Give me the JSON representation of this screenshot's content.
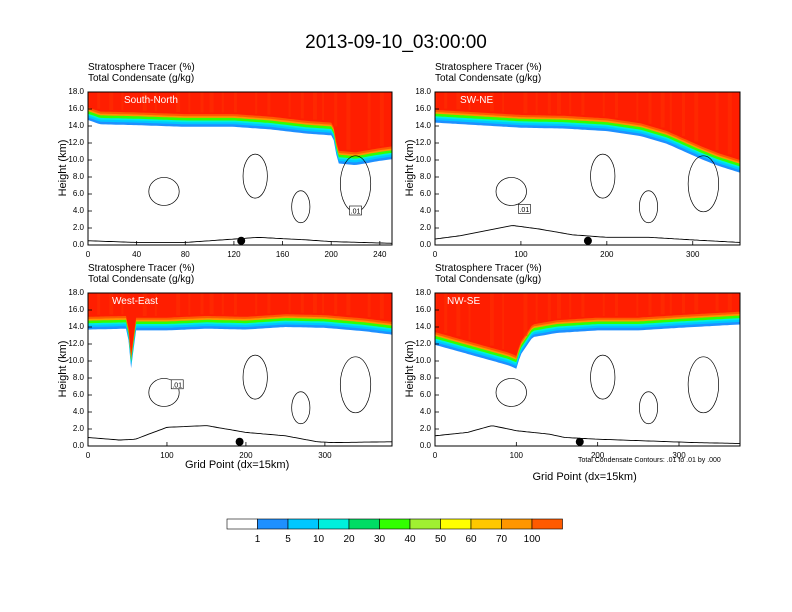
{
  "title": "2013-09-10_03:00:00",
  "panel_header": [
    "Stratosphere Tracer   (%)",
    "Total Condensate   (g/kg)"
  ],
  "ylabel": "Height (km)",
  "xlabel": "Grid Point (dx=15km)",
  "contour_note": "Total Condensate Contours: .01 to .01 by .000",
  "contour_box_label": ".01",
  "colors": {
    "levels": [
      "#ffffff",
      "#1e90ff",
      "#00c8ff",
      "#00f0dc",
      "#00dc64",
      "#32ff00",
      "#a0f032",
      "#ffff00",
      "#ffc800",
      "#ff9600",
      "#ff5a00",
      "#ff0000"
    ],
    "stratosphere": "#ff1e00",
    "streak": "#ff3200"
  },
  "chart_data": [
    {
      "type": "heatmap",
      "region": "South-North",
      "xlim": [
        0,
        250
      ],
      "xticks": [
        0,
        40,
        80,
        120,
        160,
        200,
        240
      ],
      "ylim": [
        0,
        18
      ],
      "yticks": [
        "0.0",
        "2.0",
        "4.0",
        "6.0",
        "8.0",
        "10.0",
        "12.0",
        "14.0",
        "16.0",
        "18.0"
      ],
      "tropopause_height_km": [
        [
          0,
          15.6
        ],
        [
          10,
          15.1
        ],
        [
          40,
          15.0
        ],
        [
          80,
          14.8
        ],
        [
          120,
          14.8
        ],
        [
          150,
          14.5
        ],
        [
          180,
          14.0
        ],
        [
          200,
          13.8
        ],
        [
          203,
          13.0
        ],
        [
          205,
          10.5
        ],
        [
          220,
          10.3
        ],
        [
          240,
          10.8
        ],
        [
          250,
          11.0
        ]
      ],
      "terrain_km": [
        [
          0,
          0.5
        ],
        [
          40,
          0.3
        ],
        [
          80,
          0.3
        ],
        [
          100,
          0.5
        ],
        [
          140,
          0.9
        ],
        [
          180,
          0.6
        ],
        [
          200,
          0.4
        ],
        [
          250,
          0.2
        ]
      ],
      "contour_label_x": 220,
      "contour_label_km": 4.0,
      "marker_x": 126
    },
    {
      "type": "heatmap",
      "region": "SW-NE",
      "xlim": [
        0,
        355
      ],
      "xticks": [
        0,
        100,
        200,
        300
      ],
      "ylim": [
        0,
        18
      ],
      "yticks": [
        "0.0",
        "2.0",
        "4.0",
        "6.0",
        "8.0",
        "10.0",
        "12.0",
        "14.0",
        "16.0",
        "18.0"
      ],
      "tropopause_height_km": [
        [
          0,
          15.3
        ],
        [
          50,
          15.0
        ],
        [
          100,
          14.7
        ],
        [
          150,
          14.6
        ],
        [
          200,
          14.3
        ],
        [
          240,
          13.7
        ],
        [
          270,
          12.8
        ],
        [
          290,
          11.9
        ],
        [
          310,
          11.0
        ],
        [
          330,
          10.2
        ],
        [
          355,
          9.4
        ]
      ],
      "terrain_km": [
        [
          0,
          0.7
        ],
        [
          30,
          1.1
        ],
        [
          60,
          1.7
        ],
        [
          90,
          2.3
        ],
        [
          120,
          1.9
        ],
        [
          160,
          1.2
        ],
        [
          200,
          0.9
        ],
        [
          250,
          0.9
        ],
        [
          300,
          0.6
        ],
        [
          355,
          0.3
        ]
      ],
      "contour_label_x": 104,
      "contour_label_km": 4.2,
      "marker_x": 178
    },
    {
      "type": "heatmap",
      "region": "West-East",
      "xlim": [
        0,
        385
      ],
      "xticks": [
        0,
        100,
        200,
        300
      ],
      "ylim": [
        0,
        18
      ],
      "yticks": [
        "0.0",
        "2.0",
        "4.0",
        "6.0",
        "8.0",
        "10.0",
        "12.0",
        "14.0",
        "16.0",
        "18.0"
      ],
      "tropopause_height_km": [
        [
          0,
          14.6
        ],
        [
          50,
          14.7
        ],
        [
          55,
          9.6
        ],
        [
          60,
          14.5
        ],
        [
          100,
          14.5
        ],
        [
          150,
          14.7
        ],
        [
          200,
          14.6
        ],
        [
          250,
          14.9
        ],
        [
          300,
          14.8
        ],
        [
          350,
          14.4
        ],
        [
          385,
          14.0
        ]
      ],
      "terrain_km": [
        [
          0,
          1.0
        ],
        [
          40,
          0.7
        ],
        [
          60,
          0.8
        ],
        [
          80,
          1.5
        ],
        [
          100,
          2.2
        ],
        [
          150,
          2.4
        ],
        [
          200,
          1.6
        ],
        [
          250,
          1.2
        ],
        [
          290,
          0.5
        ],
        [
          310,
          0.4
        ],
        [
          385,
          0.5
        ]
      ],
      "contour_label_x": 113,
      "contour_label_km": 7.2,
      "marker_x": 192
    },
    {
      "type": "heatmap",
      "region": "NW-SE",
      "xlim": [
        0,
        375
      ],
      "xticks": [
        0,
        100,
        200,
        300
      ],
      "ylim": [
        0,
        18
      ],
      "yticks": [
        "0.0",
        "2.0",
        "4.0",
        "6.0",
        "8.0",
        "10.0",
        "12.0",
        "14.0",
        "16.0",
        "18.0"
      ],
      "tropopause_height_km": [
        [
          0,
          12.8
        ],
        [
          30,
          12.0
        ],
        [
          60,
          11.2
        ],
        [
          90,
          10.4
        ],
        [
          100,
          10.0
        ],
        [
          105,
          11.6
        ],
        [
          120,
          13.7
        ],
        [
          150,
          14.2
        ],
        [
          200,
          14.5
        ],
        [
          250,
          14.5
        ],
        [
          300,
          14.8
        ],
        [
          375,
          15.2
        ]
      ],
      "terrain_km": [
        [
          0,
          1.2
        ],
        [
          40,
          1.6
        ],
        [
          70,
          2.4
        ],
        [
          100,
          1.8
        ],
        [
          140,
          1.4
        ],
        [
          160,
          1.0
        ],
        [
          200,
          0.8
        ],
        [
          260,
          0.6
        ],
        [
          320,
          0.4
        ],
        [
          375,
          0.3
        ]
      ],
      "marker_x": 178
    }
  ],
  "colorbar": {
    "labels": [
      "1",
      "5",
      "10",
      "20",
      "30",
      "40",
      "50",
      "60",
      "70",
      "100"
    ]
  }
}
